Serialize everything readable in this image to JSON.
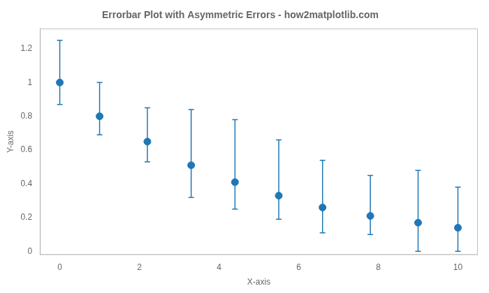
{
  "chart_data": {
    "type": "scatter",
    "title": "Errorbar Plot with Asymmetric Errors - how2matplotlib.com",
    "xlabel": "X-axis",
    "ylabel": "Y-axis",
    "x": [
      0,
      1,
      2.2,
      3.3,
      4.4,
      5.5,
      6.6,
      7.8,
      9,
      10
    ],
    "values": [
      1.0,
      0.8,
      0.65,
      0.51,
      0.41,
      0.33,
      0.26,
      0.21,
      0.17,
      0.14
    ],
    "yerr_lower": [
      0.13,
      0.11,
      0.12,
      0.19,
      0.16,
      0.14,
      0.15,
      0.11,
      0.17,
      0.14
    ],
    "yerr_upper": [
      0.25,
      0.2,
      0.2,
      0.33,
      0.37,
      0.33,
      0.28,
      0.24,
      0.31,
      0.24
    ],
    "color": "#1f77b4",
    "marker": "circle",
    "xlim": [
      -0.5,
      10.5
    ],
    "xticks": [
      0,
      2,
      4,
      6,
      8,
      10
    ],
    "ylim": [
      -0.02,
      1.32
    ],
    "yticks": [
      0,
      0.2,
      0.4,
      0.6,
      0.8,
      1.0,
      1.2
    ],
    "grid": false
  }
}
